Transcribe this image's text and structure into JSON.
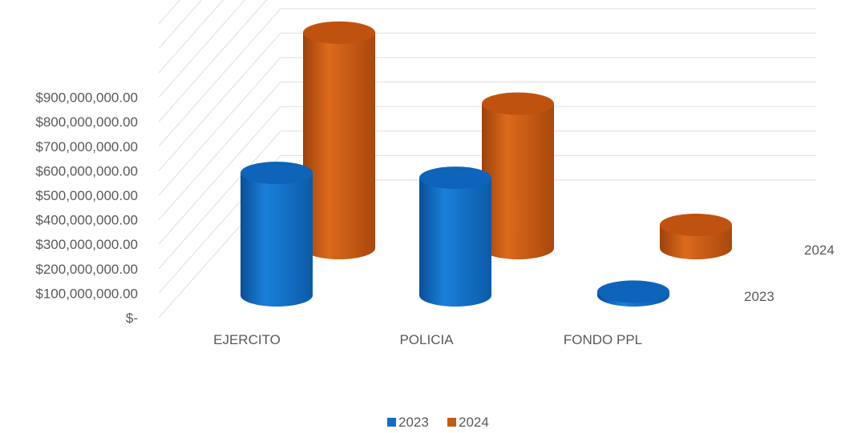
{
  "chart_data": {
    "type": "bar",
    "style": "3d-cylinder",
    "categories": [
      "EJERCITO",
      "POLICIA",
      "FONDO PPL"
    ],
    "series": [
      {
        "name": "2023",
        "values": [
          500000000,
          480000000,
          15000000
        ],
        "color": "#0f6fc6"
      },
      {
        "name": "2024",
        "values": [
          880000000,
          590000000,
          95000000
        ],
        "color": "#c55a11"
      }
    ],
    "depth_labels": [
      "2023",
      "2024"
    ],
    "y_ticks": [
      "$-",
      "$100,000,000.00",
      "$200,000,000.00",
      "$300,000,000.00",
      "$400,000,000.00",
      "$500,000,000.00",
      "$600,000,000.00",
      "$700,000,000.00",
      "$800,000,000.00",
      "$900,000,000.00"
    ],
    "ylim": [
      0,
      900000000
    ],
    "grid": true,
    "legend_position": "bottom"
  }
}
